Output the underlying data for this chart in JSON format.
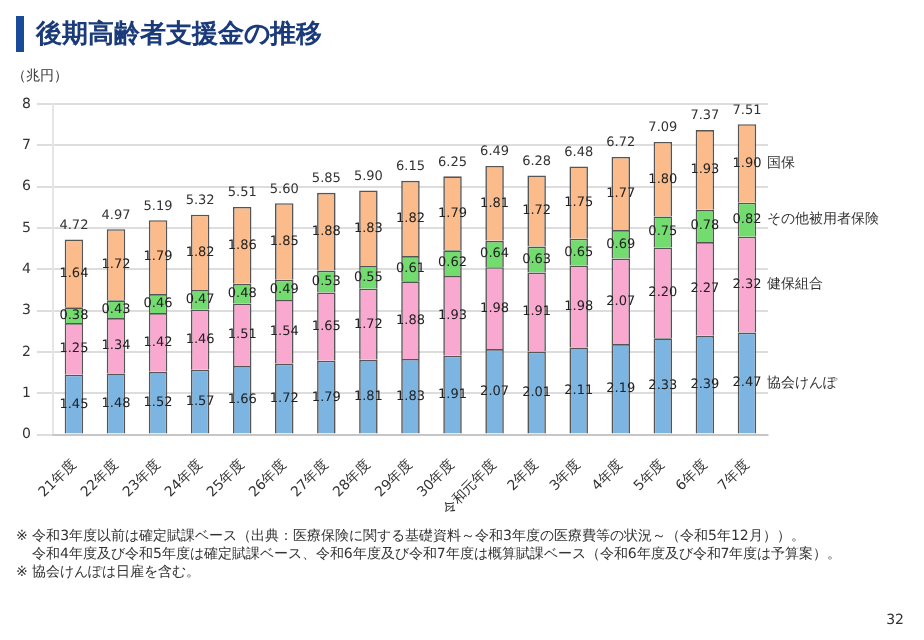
{
  "chart_data": {
    "type": "bar",
    "title": "後期高齢者支援金の推移",
    "ylabel": "（兆円）",
    "categories": [
      "21年度",
      "22年度",
      "23年度",
      "24年度",
      "25年度",
      "26年度",
      "27年度",
      "28年度",
      "29年度",
      "30年度",
      "令和元年度",
      "2年度",
      "3年度",
      "4年度",
      "5年度",
      "6年度",
      "7年度"
    ],
    "series": [
      {
        "name": "協会けんぽ",
        "color": "#7cb4e2",
        "values": [
          1.45,
          1.48,
          1.52,
          1.57,
          1.66,
          1.72,
          1.79,
          1.81,
          1.83,
          1.91,
          2.07,
          2.01,
          2.11,
          2.19,
          2.33,
          2.39,
          2.47
        ],
        "value_labels": [
          "1.45",
          "1.48",
          "1.52",
          "1.57",
          "1.66",
          "1.72",
          "1.79",
          "1.81",
          "1.83",
          "1.91",
          "2.07",
          "2.01",
          "2.11",
          "2.19",
          "2.33",
          "2.39",
          "2.47"
        ]
      },
      {
        "name": "健保組合",
        "color": "#f9a9d0",
        "values": [
          1.25,
          1.34,
          1.42,
          1.46,
          1.51,
          1.54,
          1.65,
          1.72,
          1.88,
          1.93,
          1.98,
          1.91,
          1.98,
          2.07,
          2.2,
          2.27,
          2.32
        ],
        "value_labels": [
          "1.25",
          "1.34",
          "1.42",
          "1.46",
          "1.51",
          "1.54",
          "1.65",
          "1.72",
          "1.88",
          "1.93",
          "1.98",
          "1.91",
          "1.98",
          "2.07",
          "2.20",
          "2.27",
          "2.32"
        ]
      },
      {
        "name": "その他被用者保険",
        "color": "#72dc6e",
        "values": [
          0.38,
          0.43,
          0.46,
          0.47,
          0.48,
          0.49,
          0.53,
          0.55,
          0.61,
          0.62,
          0.64,
          0.63,
          0.65,
          0.69,
          0.75,
          0.78,
          0.82
        ],
        "value_labels": [
          "0.38",
          "0.43",
          "0.46",
          "0.47",
          "0.48",
          "0.49",
          "0.53",
          "0.55",
          "0.61",
          "0.62",
          "0.64",
          "0.63",
          "0.65",
          "0.69",
          "0.75",
          "0.78",
          "0.82"
        ]
      },
      {
        "name": "国保",
        "color": "#fbbb8a",
        "values": [
          1.64,
          1.72,
          1.79,
          1.82,
          1.86,
          1.85,
          1.88,
          1.83,
          1.82,
          1.79,
          1.81,
          1.72,
          1.75,
          1.77,
          1.8,
          1.93,
          1.9
        ],
        "value_labels": [
          "1.64",
          "1.72",
          "1.79",
          "1.82",
          "1.86",
          "1.85",
          "1.88",
          "1.83",
          "1.82",
          "1.79",
          "1.81",
          "1.72",
          "1.75",
          "1.77",
          "1.80",
          "1.93",
          "1.90"
        ]
      }
    ],
    "totals": [
      "4.72",
      "4.97",
      "5.19",
      "5.32",
      "5.51",
      "5.60",
      "5.85",
      "5.90",
      "6.15",
      "6.25",
      "6.49",
      "6.28",
      "6.48",
      "6.72",
      "7.09",
      "7.37",
      "7.51"
    ],
    "stacked": true,
    "legend": false,
    "grid": "y",
    "ylim": [
      0,
      8
    ],
    "yticks": [
      0,
      1,
      2,
      3,
      4,
      5,
      6,
      7,
      8
    ],
    "annotations": [
      "※ 令和3年度以前は確定賦課ベース（出典：医療保険に関する基礎資料～令和3年度の医療費等の状況～（令和5年12月））。",
      "令和4年度及び令和5年度は確定賦課ベース、令和6年度及び令和7年度は概算賦課ベース（令和6年度及び令和7年度は予算案）。",
      "※ 協会けんぽは日雇を含む。",
      "32"
    ]
  }
}
